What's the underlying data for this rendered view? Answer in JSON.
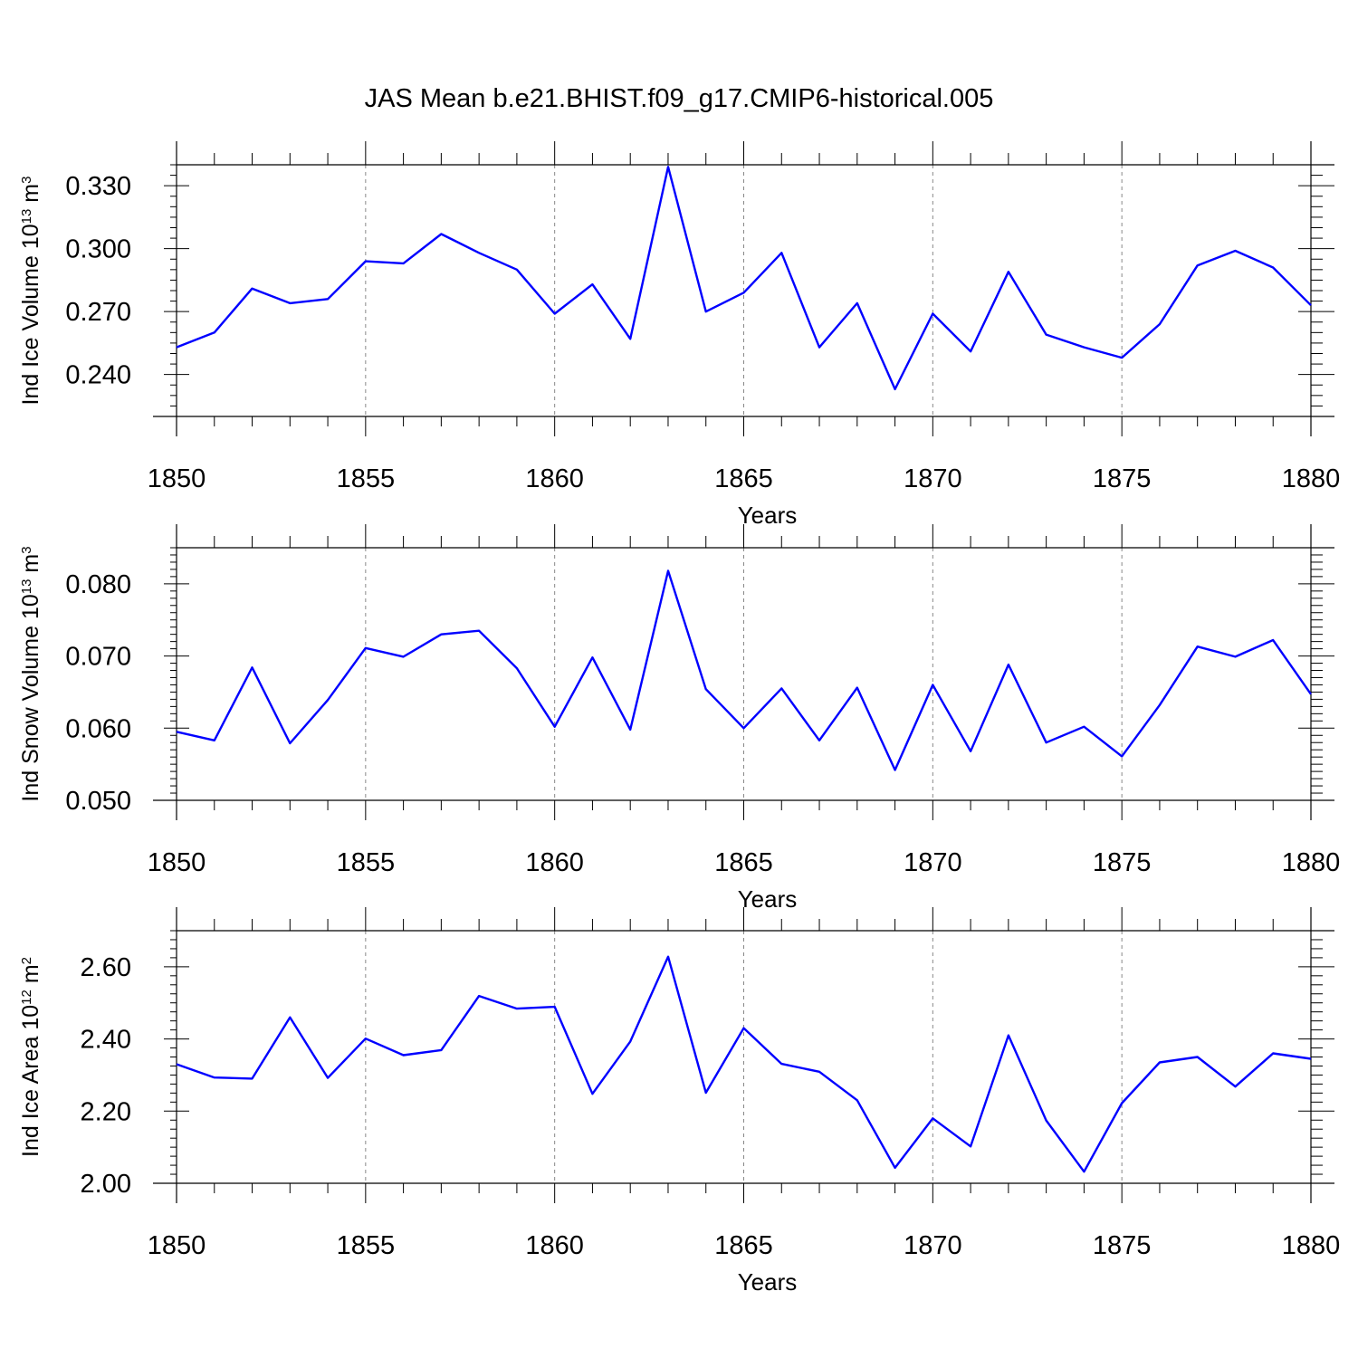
{
  "title": "JAS Mean b.e21.BHIST.f09_g17.CMIP6-historical.005",
  "chart_data": [
    {
      "type": "line",
      "ylabel": {
        "text": "Ind Ice Volume 10",
        "exp": "13",
        "unit": " m",
        "unit_exp": "3"
      },
      "xlabel": "Years",
      "xlim": [
        1850,
        1880
      ],
      "ylim": [
        0.22,
        0.34
      ],
      "y_ticks": [
        "0.240",
        "0.270",
        "0.300",
        "0.330"
      ],
      "x_ticks": [
        "1850",
        "1855",
        "1860",
        "1865",
        "1870",
        "1875",
        "1880"
      ],
      "grid": "vertical dashed at major x ticks",
      "color": "#0000ff",
      "series": [
        {
          "x": [
            1850,
            1851,
            1852,
            1853,
            1854,
            1855,
            1856,
            1857,
            1858,
            1859,
            1860,
            1861,
            1862,
            1863,
            1864,
            1865,
            1866,
            1867,
            1868,
            1869,
            1870,
            1871,
            1872,
            1873,
            1874,
            1875,
            1876,
            1877,
            1878,
            1879,
            1880
          ],
          "values": [
            0.253,
            0.26,
            0.281,
            0.274,
            0.276,
            0.294,
            0.293,
            0.307,
            0.298,
            0.29,
            0.269,
            0.283,
            0.257,
            0.339,
            0.27,
            0.279,
            0.298,
            0.253,
            0.274,
            0.233,
            0.269,
            0.251,
            0.289,
            0.259,
            0.253,
            0.248,
            0.264,
            0.292,
            0.299,
            0.291,
            0.273
          ]
        }
      ]
    },
    {
      "type": "line",
      "ylabel": {
        "text": "Ind Snow Volume 10",
        "exp": "13",
        "unit": " m",
        "unit_exp": "3"
      },
      "xlabel": "Years",
      "xlim": [
        1850,
        1880
      ],
      "ylim": [
        0.05,
        0.085
      ],
      "y_ticks": [
        "0.050",
        "0.060",
        "0.070",
        "0.080"
      ],
      "x_ticks": [
        "1850",
        "1855",
        "1860",
        "1865",
        "1870",
        "1875",
        "1880"
      ],
      "grid": "vertical dashed at major x ticks",
      "color": "#0000ff",
      "series": [
        {
          "x": [
            1850,
            1851,
            1852,
            1853,
            1854,
            1855,
            1856,
            1857,
            1858,
            1859,
            1860,
            1861,
            1862,
            1863,
            1864,
            1865,
            1866,
            1867,
            1868,
            1869,
            1870,
            1871,
            1872,
            1873,
            1874,
            1875,
            1876,
            1877,
            1878,
            1879,
            1880
          ],
          "values": [
            0.0595,
            0.0583,
            0.0684,
            0.0579,
            0.0639,
            0.0711,
            0.0699,
            0.073,
            0.0735,
            0.0683,
            0.0602,
            0.0698,
            0.0598,
            0.0818,
            0.0654,
            0.06,
            0.0655,
            0.0583,
            0.0656,
            0.0542,
            0.066,
            0.0568,
            0.0688,
            0.058,
            0.0602,
            0.0561,
            0.0632,
            0.0713,
            0.0699,
            0.0722,
            0.0647
          ]
        }
      ]
    },
    {
      "type": "line",
      "ylabel": {
        "text": "Ind Ice Area 10",
        "exp": "12",
        "unit": " m",
        "unit_exp": "2"
      },
      "xlabel": "Years",
      "xlim": [
        1850,
        1880
      ],
      "ylim": [
        2.0,
        2.7
      ],
      "y_ticks": [
        "2.00",
        "2.20",
        "2.40",
        "2.60"
      ],
      "x_ticks": [
        "1850",
        "1855",
        "1860",
        "1865",
        "1870",
        "1875",
        "1880"
      ],
      "grid": "vertical dashed at major x ticks",
      "color": "#0000ff",
      "series": [
        {
          "x": [
            1850,
            1851,
            1852,
            1853,
            1854,
            1855,
            1856,
            1857,
            1858,
            1859,
            1860,
            1861,
            1862,
            1863,
            1864,
            1865,
            1866,
            1867,
            1868,
            1869,
            1870,
            1871,
            1872,
            1873,
            1874,
            1875,
            1876,
            1877,
            1878,
            1879,
            1880
          ],
          "values": [
            2.33,
            2.293,
            2.29,
            2.46,
            2.292,
            2.401,
            2.355,
            2.369,
            2.519,
            2.484,
            2.489,
            2.248,
            2.393,
            2.628,
            2.251,
            2.43,
            2.331,
            2.309,
            2.23,
            2.043,
            2.18,
            2.102,
            2.41,
            2.174,
            2.032,
            2.222,
            2.335,
            2.35,
            2.268,
            2.36,
            2.345
          ]
        }
      ]
    }
  ]
}
